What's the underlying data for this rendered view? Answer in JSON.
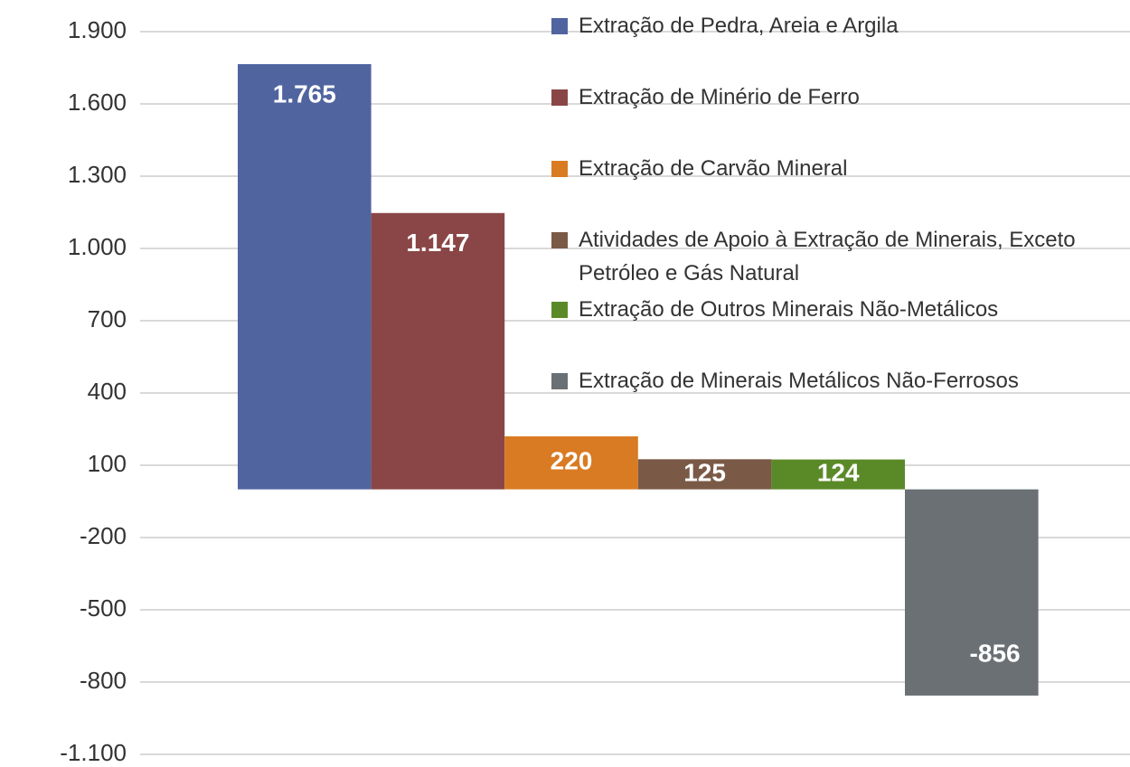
{
  "chart_data": {
    "type": "bar",
    "ylim": [
      -1100,
      1900
    ],
    "yticks": [
      {
        "value": -1100,
        "label": "-1.100"
      },
      -800,
      -500,
      -200,
      100,
      400,
      700,
      {
        "value": 1000,
        "label": "1.000"
      },
      {
        "value": 1300,
        "label": "1.300"
      },
      {
        "value": 1600,
        "label": "1.600"
      },
      {
        "value": 1900,
        "label": "1.900"
      }
    ],
    "grid": true,
    "legend": "top-right",
    "series": [
      {
        "name": "Extração de Pedra, Areia e Argila",
        "color": "#5064a0",
        "values": [
          1765
        ],
        "value_labels": [
          "1.765"
        ]
      },
      {
        "name": "Extração de Minério de Ferro",
        "color": "#8a4646",
        "values": [
          1147
        ],
        "value_labels": [
          "1.147"
        ]
      },
      {
        "name": "Extração de Carvão Mineral",
        "color": "#d97b22",
        "values": [
          220
        ]
      },
      {
        "name": "Atividades de Apoio à Extração de Minerais, Exceto Petróleo e Gás Natural",
        "color": "#7a5a46",
        "values": [
          125
        ]
      },
      {
        "name": "Extração de Outros Minerais Não-Metálicos",
        "color": "#5a8a28",
        "values": [
          124
        ]
      },
      {
        "name": "Extração de Minerais Metálicos Não-Ferrosos",
        "color": "#6a7074",
        "values": [
          -856
        ]
      }
    ]
  }
}
